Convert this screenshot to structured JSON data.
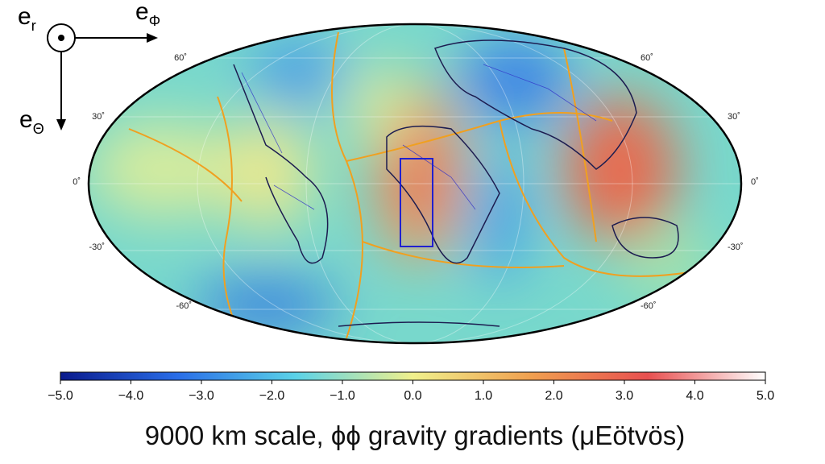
{
  "vectors": [
    {
      "base": "e",
      "sub": "r"
    },
    {
      "base": "e",
      "sub": "Φ"
    },
    {
      "base": "e",
      "sub": "Θ"
    }
  ],
  "latitude_labels": [
    "60˚",
    "30˚",
    "0˚",
    "-30˚",
    "-60˚"
  ],
  "colorbar": {
    "lim": [
      -5,
      5
    ],
    "colors": [
      "#0a1a8c",
      "#2a6ee8",
      "#5ad2e8",
      "#f0f08c",
      "#f0a050",
      "#e85050",
      "#ffffff"
    ],
    "ticks": [
      {
        "value": -5,
        "label": "−5.0"
      },
      {
        "value": -4,
        "label": "−4.0"
      },
      {
        "value": -3,
        "label": "−3.0"
      },
      {
        "value": -2,
        "label": "−2.0"
      },
      {
        "value": -1,
        "label": "−1.0"
      },
      {
        "value": 0,
        "label": "0.0"
      },
      {
        "value": 1,
        "label": "1.0"
      },
      {
        "value": 2,
        "label": "2.0"
      },
      {
        "value": 3,
        "label": "3.0"
      },
      {
        "value": 4,
        "label": "4.0"
      },
      {
        "value": 5,
        "label": "5.0"
      }
    ],
    "label": "9000 km scale, ϕϕ gravity gradients (μEötvös)"
  }
}
